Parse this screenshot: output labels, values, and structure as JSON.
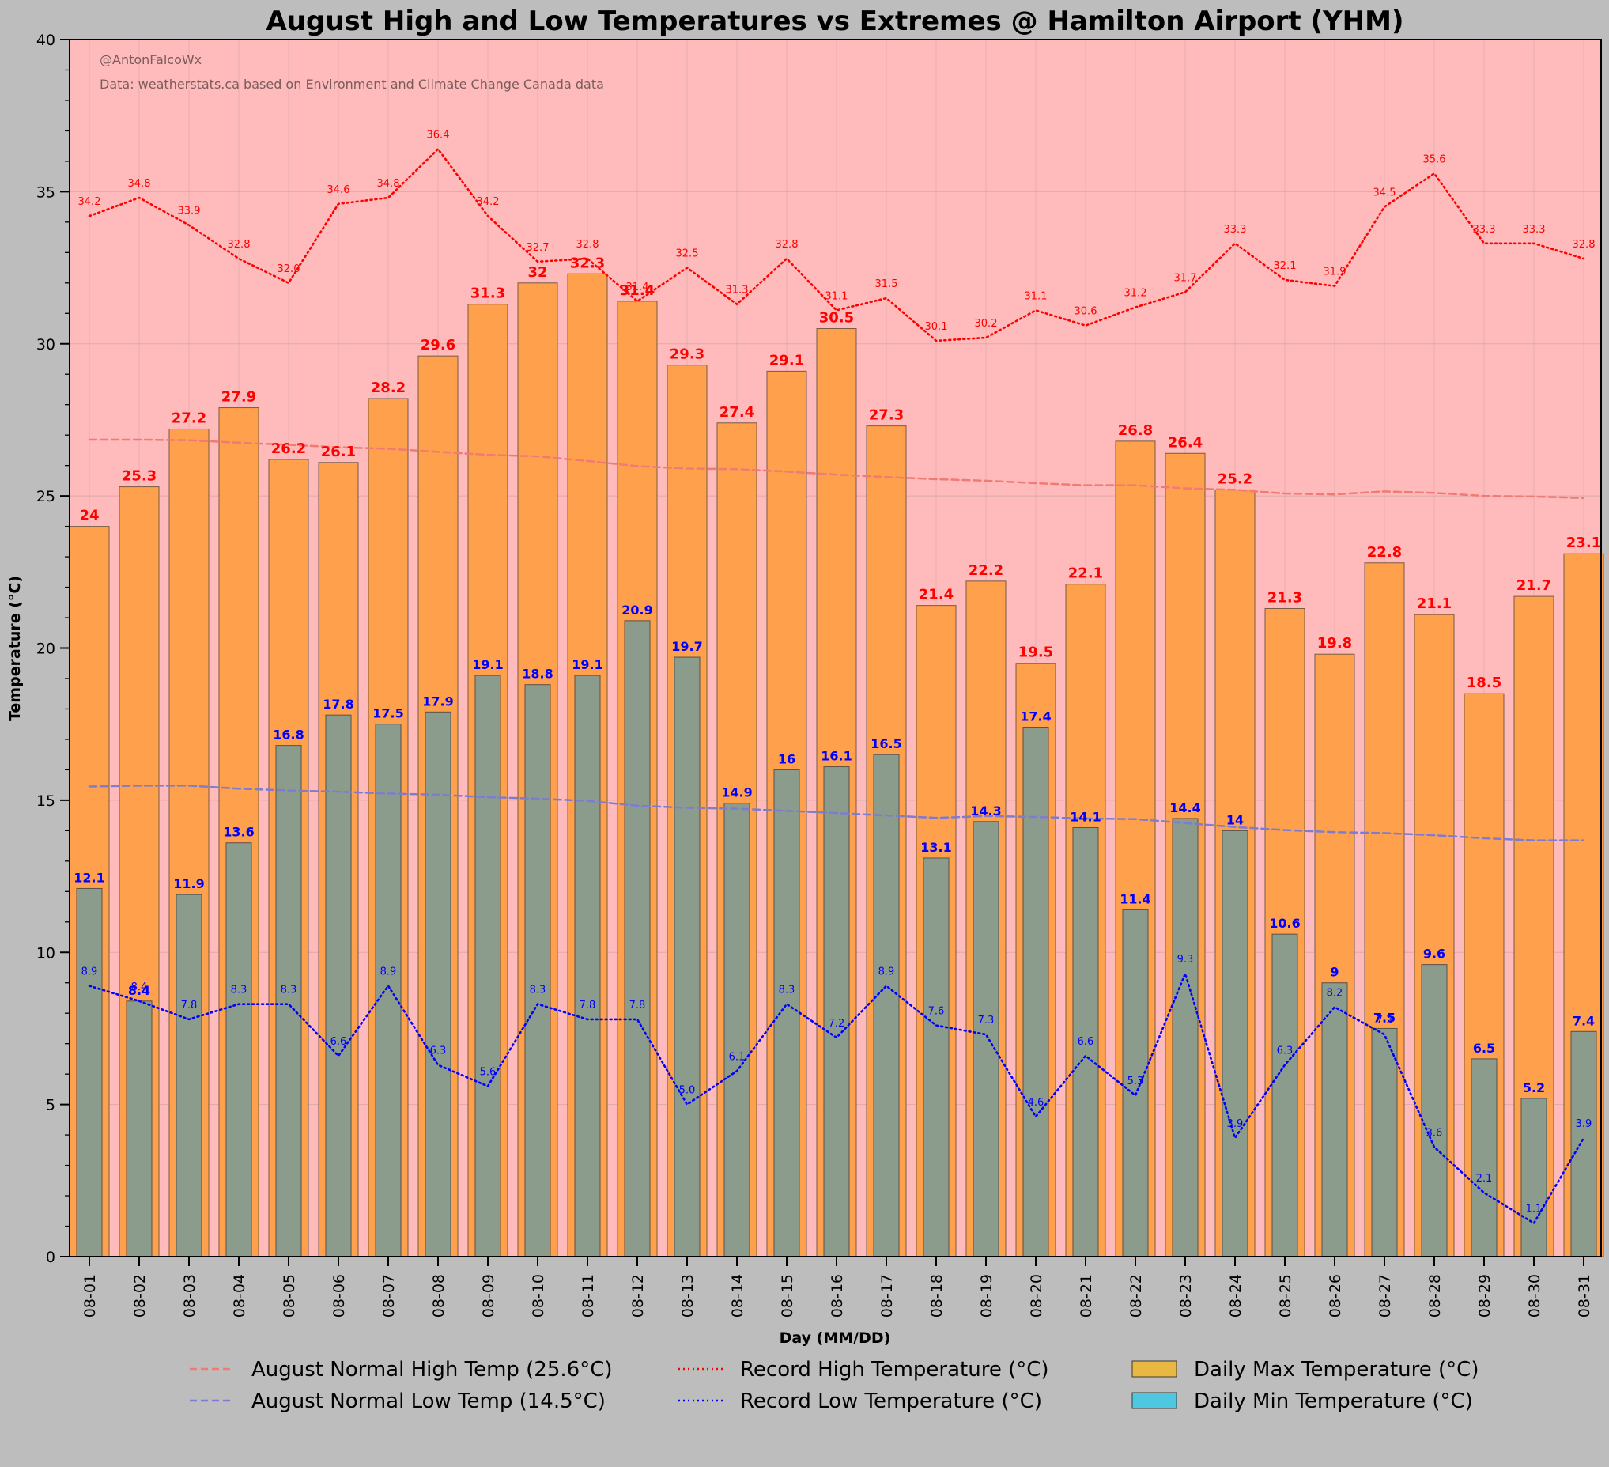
{
  "chart_data": {
    "type": "bar",
    "title": "August High and Low Temperatures vs Extremes @ Hamilton Airport (YHM)",
    "xlabel": "Day (MM/DD)",
    "ylabel": "Temperature (°C)",
    "ylim": [
      0,
      40
    ],
    "yticks": [
      0,
      5,
      10,
      15,
      20,
      25,
      30,
      35,
      40
    ],
    "grid": true,
    "credit": "@AntonFalcoWx",
    "source": "Data: weatherstats.ca based on Environment and Climate Change Canada data",
    "categories": [
      "08-01",
      "08-02",
      "08-03",
      "08-04",
      "08-05",
      "08-06",
      "08-07",
      "08-08",
      "08-09",
      "08-10",
      "08-11",
      "08-12",
      "08-13",
      "08-14",
      "08-15",
      "08-16",
      "08-17",
      "08-18",
      "08-19",
      "08-20",
      "08-21",
      "08-22",
      "08-23",
      "08-24",
      "08-25",
      "08-26",
      "08-27",
      "08-28",
      "08-29",
      "08-30",
      "08-31"
    ],
    "max_labels": [
      "24",
      "25.3",
      "27.2",
      "27.9",
      "26.2",
      "26.1",
      "28.2",
      "29.6",
      "31.3",
      "32",
      "32.3",
      "31.4",
      "29.3",
      "27.4",
      "29.1",
      "30.5",
      "27.3",
      "21.4",
      "22.2",
      "19.5",
      "22.1",
      "26.8",
      "26.4",
      "25.2",
      "21.3",
      "19.8",
      "22.8",
      "21.1",
      "18.5",
      "21.7",
      "23.1"
    ],
    "min_labels": [
      "12.1",
      "8.4",
      "11.9",
      "13.6",
      "16.8",
      "17.8",
      "17.5",
      "17.9",
      "19.1",
      "18.8",
      "19.1",
      "20.9",
      "19.7",
      "14.9",
      "16",
      "16.1",
      "16.5",
      "13.1",
      "14.3",
      "17.4",
      "14.1",
      "11.4",
      "14.4",
      "14",
      "10.6",
      "9",
      "7.5",
      "9.6",
      "6.5",
      "5.2",
      "7.4"
    ],
    "record_high_labels": [
      "34.2",
      "34.8",
      "33.9",
      "32.8",
      "32.0",
      "34.6",
      "34.8",
      "36.4",
      "34.2",
      "32.7",
      "32.8",
      "31.4",
      "32.5",
      "31.3",
      "32.8",
      "31.1",
      "31.5",
      "30.1",
      "30.2",
      "31.1",
      "30.6",
      "31.2",
      "31.7",
      "33.3",
      "32.1",
      "31.9",
      "34.5",
      "35.6",
      "33.3",
      "33.3",
      "32.8"
    ],
    "record_low_labels": [
      "8.9",
      "8.4",
      "7.8",
      "8.3",
      "8.3",
      "6.6",
      "8.9",
      "6.3",
      "5.6",
      "8.3",
      "7.8",
      "7.8",
      "5.0",
      "6.1",
      "8.3",
      "7.2",
      "8.9",
      "7.6",
      "7.3",
      "4.6",
      "6.6",
      "5.3",
      "9.3",
      "3.9",
      "6.3",
      "8.2",
      "7.3",
      "3.6",
      "2.1",
      "1.1",
      "3.9"
    ],
    "series": [
      {
        "name": "Daily Max Temperature (°C)",
        "kind": "bar",
        "values": [
          24,
          25.3,
          27.2,
          27.9,
          26.2,
          26.1,
          28.2,
          29.6,
          31.3,
          32,
          32.3,
          31.4,
          29.3,
          27.4,
          29.1,
          30.5,
          27.3,
          21.4,
          22.2,
          19.5,
          22.1,
          26.8,
          26.4,
          25.2,
          21.3,
          19.8,
          22.8,
          21.1,
          18.5,
          21.7,
          23.1
        ]
      },
      {
        "name": "Daily Min Temperature (°C)",
        "kind": "bar",
        "values": [
          12.1,
          8.4,
          11.9,
          13.6,
          16.8,
          17.8,
          17.5,
          17.9,
          19.1,
          18.8,
          19.1,
          20.9,
          19.7,
          14.9,
          16,
          16.1,
          16.5,
          13.1,
          14.3,
          17.4,
          14.1,
          11.4,
          14.4,
          14,
          10.6,
          9,
          7.5,
          9.6,
          6.5,
          5.2,
          7.4
        ]
      },
      {
        "name": "Record High Temperature (°C)",
        "kind": "line",
        "values": [
          34.2,
          34.8,
          33.9,
          32.8,
          32.0,
          34.6,
          34.8,
          36.4,
          34.2,
          32.7,
          32.8,
          31.4,
          32.5,
          31.3,
          32.8,
          31.1,
          31.5,
          30.1,
          30.2,
          31.1,
          30.6,
          31.2,
          31.7,
          33.3,
          32.1,
          31.9,
          34.5,
          35.6,
          33.3,
          33.3,
          32.8
        ]
      },
      {
        "name": "Record Low Temperature (°C)",
        "kind": "line",
        "values": [
          8.9,
          8.4,
          7.8,
          8.3,
          8.3,
          6.6,
          8.9,
          6.3,
          5.6,
          8.3,
          7.8,
          7.8,
          5.0,
          6.1,
          8.3,
          7.2,
          8.9,
          7.6,
          7.3,
          4.6,
          6.6,
          5.3,
          9.3,
          3.9,
          6.3,
          8.2,
          7.3,
          3.6,
          2.1,
          1.1,
          3.9
        ]
      },
      {
        "name": "August Normal High Temp (25.6°C)",
        "kind": "line",
        "values": [
          26.85,
          26.85,
          26.83,
          26.75,
          26.68,
          26.6,
          26.55,
          26.45,
          26.35,
          26.3,
          26.15,
          25.98,
          25.9,
          25.88,
          25.8,
          25.7,
          25.62,
          25.55,
          25.5,
          25.42,
          25.35,
          25.35,
          25.25,
          25.2,
          25.08,
          25.05,
          25.15,
          25.1,
          25.0,
          24.98,
          24.93
        ]
      },
      {
        "name": "August Normal Low Temp (14.5°C)",
        "kind": "line",
        "values": [
          15.45,
          15.48,
          15.48,
          15.38,
          15.32,
          15.28,
          15.22,
          15.18,
          15.1,
          15.05,
          14.98,
          14.82,
          14.75,
          14.72,
          14.65,
          14.58,
          14.5,
          14.42,
          14.48,
          14.45,
          14.4,
          14.38,
          14.25,
          14.12,
          14.02,
          13.95,
          13.92,
          13.85,
          13.75,
          13.68,
          13.68
        ]
      }
    ],
    "legend": {
      "placement": "bottom",
      "entries": [
        {
          "label": "August Normal High Temp (25.6°C)",
          "color": "#f07a74",
          "style": "dashed"
        },
        {
          "label": "August Normal Low Temp (14.5°C)",
          "color": "#7c7cd2",
          "style": "dashed"
        },
        {
          "label": "Record High Temperature (°C)",
          "color": "#ff0000",
          "style": "dotted"
        },
        {
          "label": "Record Low Temperature (°C)",
          "color": "#0000ff",
          "style": "dotted"
        },
        {
          "label": "Daily Max Temperature (°C)",
          "color": "#e8b843",
          "style": "patch"
        },
        {
          "label": "Daily Min Temperature (°C)",
          "color": "#4dc8e0",
          "style": "patch"
        }
      ]
    },
    "colors": {
      "figure_bg": "#bdbdbd",
      "plot_bg": "#ffbbbb",
      "max_bar": "#ffa04c",
      "min_bar": "#8c9c8c",
      "max_label": "#ff0000",
      "min_label": "#0000ff",
      "record_high": "#ff0000",
      "record_low": "#0000ff",
      "normal_high": "#f07a74",
      "normal_low": "#7c7cd2",
      "credit_text": "#7a5c5c"
    }
  }
}
